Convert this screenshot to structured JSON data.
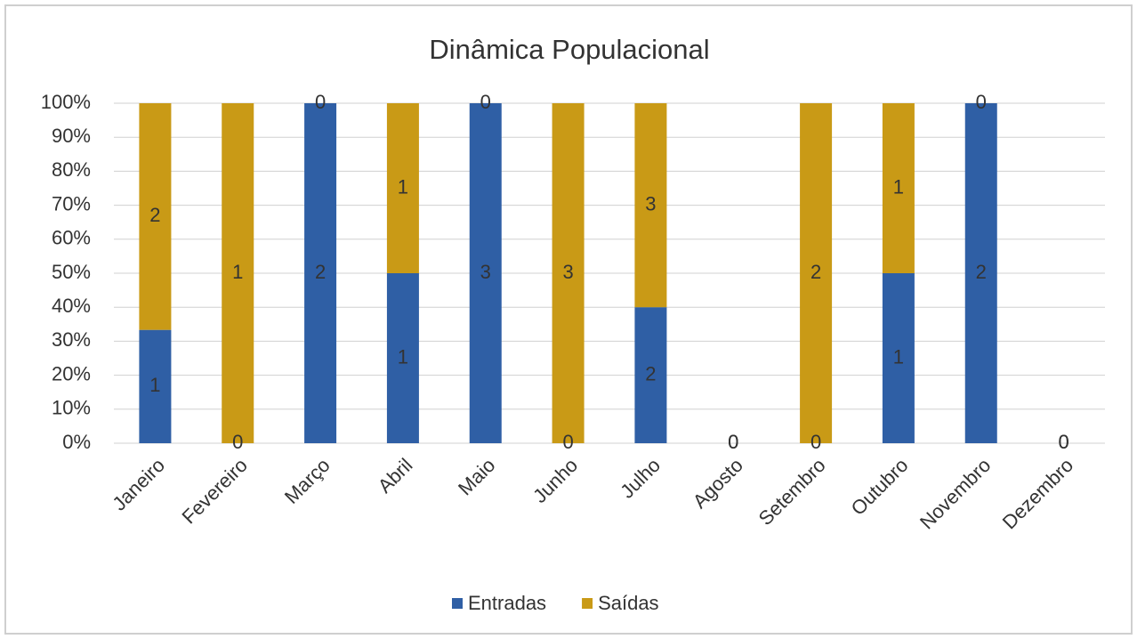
{
  "chart_data": {
    "type": "bar",
    "stacked": "percent",
    "title": "Dinâmica Populacional",
    "categories": [
      "Janeiro",
      "Fevereiro",
      "Março",
      "Abril",
      "Maio",
      "Junho",
      "Julho",
      "Agosto",
      "Setembro",
      "Outubro",
      "Novembro",
      "Dezembro"
    ],
    "series": [
      {
        "name": "Entradas",
        "color": "#2f5fa5",
        "values": [
          1,
          0,
          2,
          1,
          3,
          0,
          2,
          0,
          0,
          1,
          2,
          0
        ]
      },
      {
        "name": "Saídas",
        "color": "#c99a16",
        "values": [
          2,
          1,
          0,
          1,
          0,
          3,
          3,
          0,
          2,
          1,
          0,
          0
        ]
      }
    ],
    "ylim": [
      0,
      100
    ],
    "yticks": [
      {
        "value": 0,
        "label": "0%"
      },
      {
        "value": 10,
        "label": "10%"
      },
      {
        "value": 20,
        "label": "20%"
      },
      {
        "value": 30,
        "label": "30%"
      },
      {
        "value": 40,
        "label": "40%"
      },
      {
        "value": 50,
        "label": "50%"
      },
      {
        "value": 60,
        "label": "60%"
      },
      {
        "value": 70,
        "label": "70%"
      },
      {
        "value": 80,
        "label": "80%"
      },
      {
        "value": 90,
        "label": "90%"
      },
      {
        "value": 100,
        "label": "100%"
      }
    ],
    "grid": true,
    "legend": "bottom"
  }
}
